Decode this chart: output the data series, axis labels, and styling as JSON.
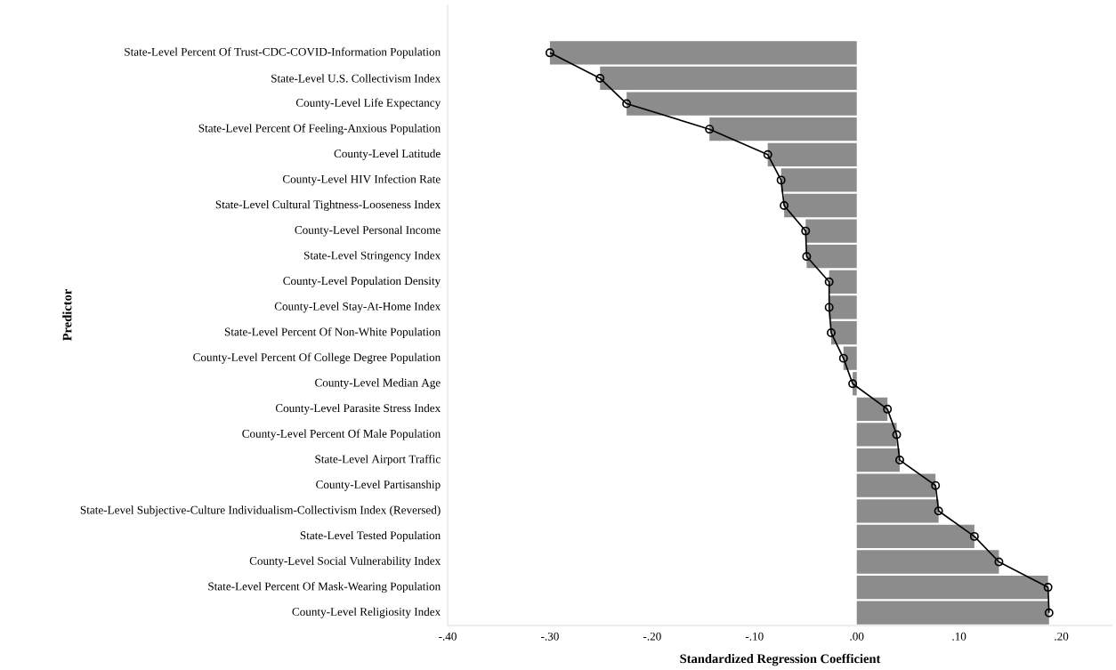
{
  "chart_data": {
    "type": "bar",
    "orientation": "horizontal",
    "xlabel": "Standardized Regression Coefficient",
    "ylabel": "Predictor",
    "categories": [
      "State-Level Percent Of Trust-CDC-COVID-Information Population",
      "State-Level U.S. Collectivism Index",
      "County-Level Life Expectancy",
      "State-Level Percent Of Feeling-Anxious Population",
      "County-Level Latitude",
      "County-Level HIV Infection Rate",
      "State-Level Cultural Tightness-Looseness Index",
      "County-Level Personal Income",
      "State-Level Stringency Index",
      "County-Level Population Density",
      "County-Level Stay-At-Home Index",
      "State-Level Percent Of Non-White Population",
      "County-Level Percent Of College Degree Population",
      "County-Level Median Age",
      "County-Level Parasite Stress Index",
      "County-Level Percent Of Male Population",
      "State-Level Airport Traffic",
      "County-Level Partisanship",
      "State-Level Subjective-Culture Individualism-Collectivism Index (Reversed)",
      "State-Level Tested Population",
      "County-Level Social Vulnerability Index",
      "State-Level Percent Of Mask-Wearing Population",
      "County-Level Religiosity Index"
    ],
    "series": [
      {
        "color": "#8c8c8c",
        "values": [
          -0.3,
          -0.251,
          -0.225,
          -0.144,
          -0.087,
          -0.074,
          -0.071,
          -0.05,
          -0.049,
          -0.027,
          -0.027,
          -0.025,
          -0.013,
          -0.004,
          0.03,
          0.039,
          0.042,
          0.077,
          0.08,
          0.115,
          0.139,
          0.187,
          0.188
        ]
      },
      {
        "type": "line",
        "color": "#000000",
        "marker": "circle",
        "line_style": "solid",
        "values": [
          -0.3,
          -0.251,
          -0.225,
          -0.144,
          -0.087,
          -0.074,
          -0.071,
          -0.05,
          -0.049,
          -0.027,
          -0.027,
          -0.025,
          -0.013,
          -0.004,
          0.03,
          0.039,
          0.042,
          0.077,
          0.08,
          0.115,
          0.139,
          0.187,
          0.188
        ]
      }
    ],
    "xlim": [
      -0.4,
      0.25
    ],
    "xticks": [
      {
        "value": -0.4,
        "label": "-.40"
      },
      {
        "value": -0.3,
        "label": "-.30"
      },
      {
        "value": -0.2,
        "label": "-.20"
      },
      {
        "value": -0.1,
        "label": "-.10"
      },
      {
        "value": 0.0,
        "label": ".00"
      },
      {
        "value": 0.1,
        "label": ".10"
      },
      {
        "value": 0.2,
        "label": ".20"
      }
    ],
    "grid": false
  }
}
